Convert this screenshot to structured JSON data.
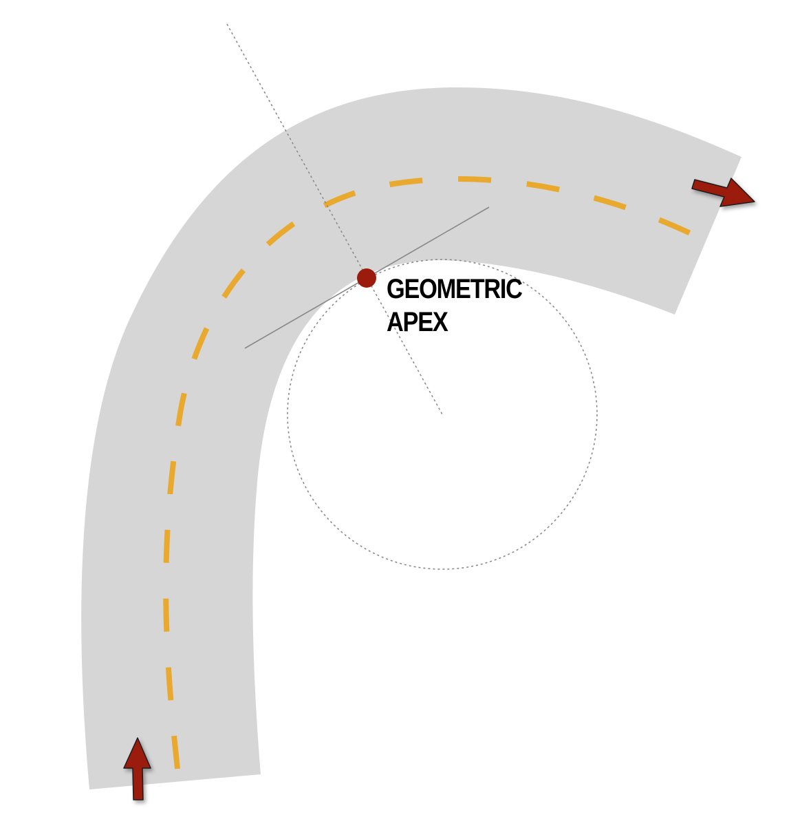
{
  "diagram": {
    "label_line1": "GEOMETRIC",
    "label_line2": "APEX"
  },
  "colors": {
    "road": "#d6d6d6",
    "centerline": "#e8a92e",
    "arrow": "#9b1c0c",
    "apex_point": "#9b1c0c",
    "guide_line": "#888888",
    "circle_outline": "#8a8a8a",
    "label": "#000000"
  },
  "icons": {
    "entry_arrow": "arrow-up-icon",
    "exit_arrow": "arrow-right-icon"
  }
}
